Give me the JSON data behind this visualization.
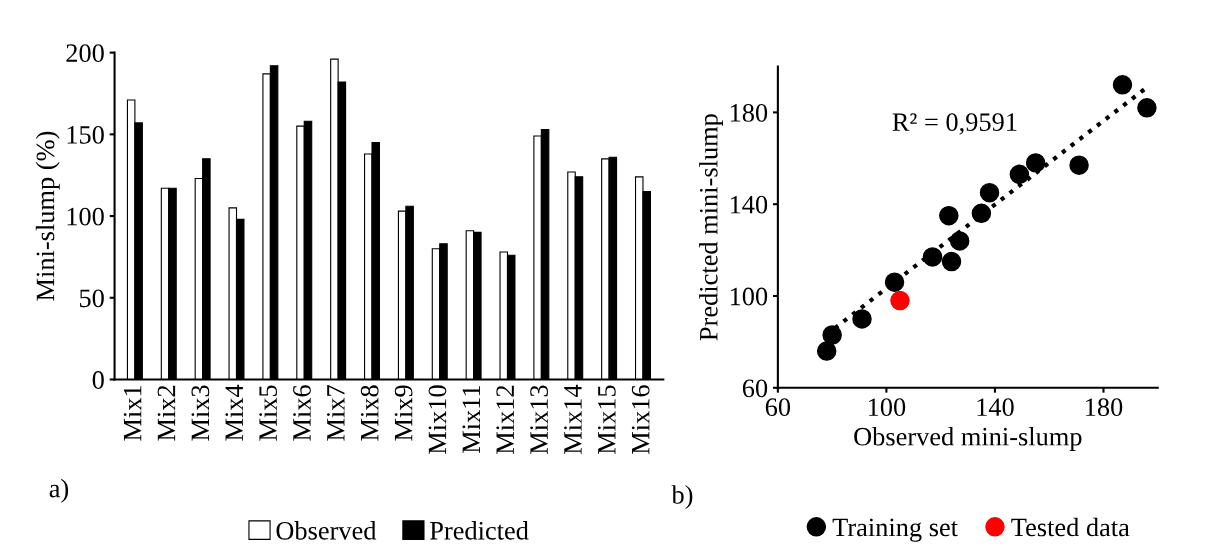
{
  "chart_data": [
    {
      "type": "bar",
      "ylabel": "Mini-slump (%)",
      "categories": [
        "Mix1",
        "Mix2",
        "Mix3",
        "Mix4",
        "Mix5",
        "Mix6",
        "Mix7",
        "Mix8",
        "Mix9",
        "Mix10",
        "Mix11",
        "Mix12",
        "Mix13",
        "Mix14",
        "Mix15",
        "Mix16"
      ],
      "series": [
        {
          "name": "Observed",
          "color": "#ffffff",
          "values": [
            171,
            117,
            123,
            105,
            187,
            155,
            196,
            138,
            103,
            80,
            91,
            78,
            149,
            127,
            135,
            124
          ]
        },
        {
          "name": "Predicted",
          "color": "#000000",
          "values": [
            157,
            117,
            135,
            98,
            192,
            158,
            182,
            145,
            106,
            83,
            90,
            76,
            153,
            124,
            136,
            115
          ]
        }
      ],
      "ylim": [
        0,
        200
      ],
      "yticks": [
        0,
        50,
        100,
        150,
        200
      ],
      "grid": false,
      "legend": "bottom",
      "annotations": [
        "a)"
      ]
    },
    {
      "type": "scatter",
      "xlabel": "Observed mini-slump",
      "ylabel": "Predicted mini-slump",
      "series": [
        {
          "name": "Training set",
          "color": "#000000",
          "x": [
            171,
            117,
            123,
            187,
            155,
            196,
            138,
            103,
            80,
            91,
            78,
            149,
            127,
            135,
            124
          ],
          "values": [
            157,
            117,
            135,
            192,
            158,
            182,
            145,
            106,
            83,
            90,
            76,
            153,
            124,
            136,
            115
          ]
        },
        {
          "name": "Tested data",
          "color": "#ff0000",
          "x": [
            105
          ],
          "values": [
            98
          ]
        },
        {
          "type": "line",
          "color": "#000000",
          "line_style": "dotted",
          "marker": "none",
          "x": [
            81,
            195
          ],
          "values": [
            86,
            190
          ]
        }
      ],
      "xlim": [
        60,
        200
      ],
      "xticks": [
        60,
        100,
        140,
        180
      ],
      "ylim": [
        60,
        200
      ],
      "yticks": [
        60,
        100,
        140,
        180
      ],
      "marker": "circle",
      "grid": false,
      "legend": "bottom",
      "annotations": [
        "R² = 0,9591",
        "b)"
      ]
    }
  ]
}
